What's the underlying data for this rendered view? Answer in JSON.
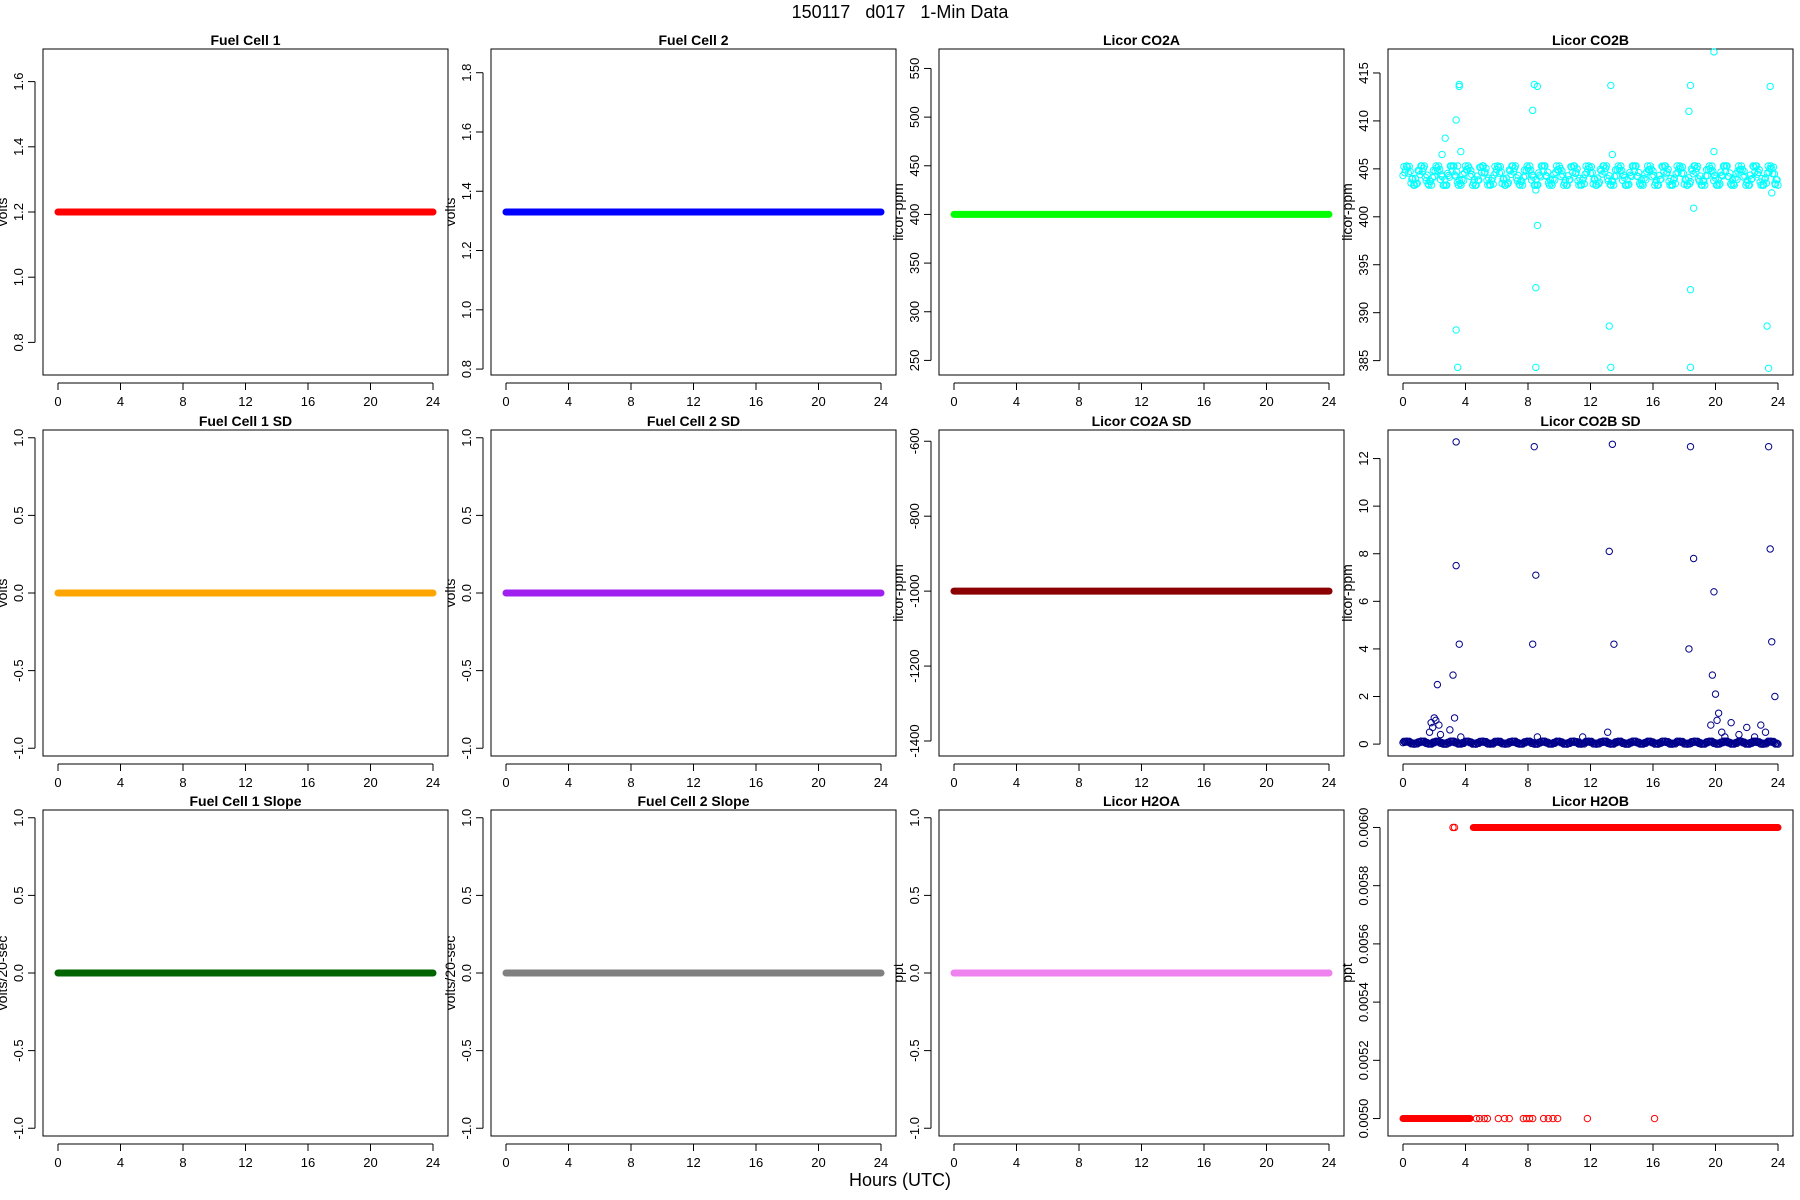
{
  "figure": {
    "title": "150117   d017   1-Min Data",
    "xlabel": "Hours (UTC)"
  },
  "chart_data": [
    {
      "type": "scatter",
      "title": "Fuel Cell 1",
      "ylabel": "volts",
      "color": "#ff0000",
      "xlim": [
        0,
        24
      ],
      "ylim": [
        0.7,
        1.7
      ],
      "x_ticks": [
        0,
        4,
        8,
        12,
        16,
        20,
        24
      ],
      "y_ticks": [
        0.8,
        1.0,
        1.2,
        1.4,
        1.6
      ],
      "y_tick_labels": [
        "0.8",
        "1.0",
        "1.2",
        "1.4",
        "1.6"
      ],
      "series": [
        {
          "kind": "constant",
          "y": 1.2,
          "x_range": [
            0,
            24
          ]
        }
      ]
    },
    {
      "type": "scatter",
      "title": "Fuel Cell 2",
      "ylabel": "volts",
      "color": "#0000ff",
      "xlim": [
        0,
        24
      ],
      "ylim": [
        0.78,
        1.88
      ],
      "x_ticks": [
        0,
        4,
        8,
        12,
        16,
        20,
        24
      ],
      "y_ticks": [
        0.8,
        1.0,
        1.2,
        1.4,
        1.6,
        1.8
      ],
      "y_tick_labels": [
        "0.8",
        "1.0",
        "1.2",
        "1.4",
        "1.6",
        "1.8"
      ],
      "series": [
        {
          "kind": "constant",
          "y": 1.33,
          "x_range": [
            0,
            24
          ]
        }
      ]
    },
    {
      "type": "scatter",
      "title": "Licor CO2A",
      "ylabel": "licor-ppm",
      "color": "#00ff00",
      "xlim": [
        0,
        24
      ],
      "ylim": [
        235,
        570
      ],
      "x_ticks": [
        0,
        4,
        8,
        12,
        16,
        20,
        24
      ],
      "y_ticks": [
        250,
        300,
        350,
        400,
        450,
        500,
        550
      ],
      "y_tick_labels": [
        "250",
        "300",
        "350",
        "400",
        "450",
        "500",
        "550"
      ],
      "series": [
        {
          "kind": "constant",
          "y": 400,
          "x_range": [
            0,
            24
          ]
        }
      ]
    },
    {
      "type": "scatter",
      "title": "Licor CO2B",
      "ylabel": "licor-ppm",
      "color": "#00ffff",
      "xlim": [
        0,
        24
      ],
      "ylim": [
        383.5,
        417.5
      ],
      "x_ticks": [
        0,
        4,
        8,
        12,
        16,
        20,
        24
      ],
      "y_ticks": [
        385,
        390,
        395,
        400,
        405,
        410,
        415
      ],
      "y_tick_labels": [
        "385",
        "390",
        "395",
        "400",
        "405",
        "410",
        "415"
      ],
      "series": [
        {
          "kind": "band",
          "x_range": [
            0,
            24
          ],
          "y_min": 403.3,
          "y_max": 405.3
        },
        {
          "kind": "points",
          "points": [
            [
              2.5,
              406.5
            ],
            [
              2.7,
              408.2
            ],
            [
              3.4,
              410.1
            ],
            [
              3.5,
              405.3
            ],
            [
              3.6,
              413.8
            ],
            [
              3.7,
              406.8
            ],
            [
              3.4,
              388.2
            ],
            [
              3.5,
              384.3
            ],
            [
              3.6,
              413.6
            ],
            [
              8.3,
              411.1
            ],
            [
              8.4,
              413.8
            ],
            [
              8.5,
              402.8
            ],
            [
              8.6,
              399.1
            ],
            [
              8.5,
              392.6
            ],
            [
              8.5,
              384.3
            ],
            [
              8.6,
              413.6
            ],
            [
              13.3,
              413.7
            ],
            [
              13.4,
              406.5
            ],
            [
              13.2,
              388.6
            ],
            [
              13.3,
              384.3
            ],
            [
              18.3,
              411
            ],
            [
              18.4,
              413.7
            ],
            [
              18.6,
              400.9
            ],
            [
              18.4,
              392.4
            ],
            [
              18.4,
              384.3
            ],
            [
              19.9,
              417.2
            ],
            [
              19.9,
              406.8
            ],
            [
              23.3,
              388.6
            ],
            [
              23.4,
              384.2
            ],
            [
              23.5,
              413.6
            ],
            [
              23.6,
              402.5
            ],
            [
              23.8,
              403.5
            ]
          ]
        }
      ]
    },
    {
      "type": "scatter",
      "title": "Fuel Cell 1 SD",
      "ylabel": "volts",
      "color": "#ffa500",
      "xlim": [
        0,
        24
      ],
      "ylim": [
        -1.05,
        1.05
      ],
      "x_ticks": [
        0,
        4,
        8,
        12,
        16,
        20,
        24
      ],
      "y_ticks": [
        -1.0,
        -0.5,
        0.0,
        0.5,
        1.0
      ],
      "y_tick_labels": [
        "-1.0",
        "-0.5",
        "0.0",
        "0.5",
        "1.0"
      ],
      "series": [
        {
          "kind": "constant",
          "y": 0,
          "x_range": [
            0,
            24
          ]
        }
      ]
    },
    {
      "type": "scatter",
      "title": "Fuel Cell 2 SD",
      "ylabel": "volts",
      "color": "#a020f0",
      "xlim": [
        0,
        24
      ],
      "ylim": [
        -1.05,
        1.05
      ],
      "x_ticks": [
        0,
        4,
        8,
        12,
        16,
        20,
        24
      ],
      "y_ticks": [
        -1.0,
        -0.5,
        0.0,
        0.5,
        1.0
      ],
      "y_tick_labels": [
        "-1.0",
        "-0.5",
        "0.0",
        "0.5",
        "1.0"
      ],
      "series": [
        {
          "kind": "constant",
          "y": 0,
          "x_range": [
            0,
            24
          ]
        }
      ]
    },
    {
      "type": "scatter",
      "title": "Licor CO2A SD",
      "ylabel": "licor-ppm",
      "color": "#8b0000",
      "xlim": [
        0,
        24
      ],
      "ylim": [
        -1440,
        -570
      ],
      "x_ticks": [
        0,
        4,
        8,
        12,
        16,
        20,
        24
      ],
      "y_ticks": [
        -1400,
        -1200,
        -1000,
        -800,
        -600
      ],
      "y_tick_labels": [
        "-1400",
        "-1200",
        "-1000",
        "-800",
        "-600"
      ],
      "series": [
        {
          "kind": "constant",
          "y": -1000,
          "x_range": [
            0,
            24
          ]
        }
      ]
    },
    {
      "type": "scatter",
      "title": "Licor CO2B SD",
      "ylabel": "licor-ppm",
      "color": "#00008b",
      "xlim": [
        0,
        24
      ],
      "ylim": [
        -0.5,
        13.2
      ],
      "x_ticks": [
        0,
        4,
        8,
        12,
        16,
        20,
        24
      ],
      "y_ticks": [
        0,
        2,
        4,
        6,
        8,
        10,
        12
      ],
      "y_tick_labels": [
        "0",
        "2",
        "4",
        "6",
        "8",
        "10",
        "12"
      ],
      "series": [
        {
          "kind": "band",
          "x_range": [
            0,
            24
          ],
          "y_min": 0,
          "y_max": 0.12
        },
        {
          "kind": "points",
          "points": [
            [
              1.7,
              0.5
            ],
            [
              1.8,
              0.9
            ],
            [
              1.9,
              0.7
            ],
            [
              2,
              1.1
            ],
            [
              2.1,
              1
            ],
            [
              2.2,
              2.5
            ],
            [
              2.3,
              0.8
            ],
            [
              2.4,
              0.4
            ],
            [
              3,
              0.6
            ],
            [
              3.2,
              2.9
            ],
            [
              3.3,
              1.1
            ],
            [
              3.4,
              12.7
            ],
            [
              3.4,
              7.5
            ],
            [
              3.6,
              4.2
            ],
            [
              3.7,
              0.3
            ],
            [
              8.3,
              4.2
            ],
            [
              8.4,
              12.5
            ],
            [
              8.5,
              7.1
            ],
            [
              8.6,
              0.3
            ],
            [
              11.5,
              0.3
            ],
            [
              13.2,
              8.1
            ],
            [
              13.4,
              12.6
            ],
            [
              13.5,
              4.2
            ],
            [
              13.1,
              0.5
            ],
            [
              18.3,
              4
            ],
            [
              18.4,
              12.5
            ],
            [
              18.6,
              7.8
            ],
            [
              19.8,
              2.9
            ],
            [
              19.9,
              6.4
            ],
            [
              20,
              2.1
            ],
            [
              19.7,
              0.8
            ],
            [
              20.1,
              1
            ],
            [
              20.2,
              1.3
            ],
            [
              20.4,
              0.5
            ],
            [
              20.6,
              0.3
            ],
            [
              21,
              0.9
            ],
            [
              21.5,
              0.4
            ],
            [
              22,
              0.7
            ],
            [
              22.5,
              0.3
            ],
            [
              22.9,
              0.8
            ],
            [
              23.2,
              0.5
            ],
            [
              23.4,
              12.5
            ],
            [
              23.5,
              8.2
            ],
            [
              23.6,
              4.3
            ],
            [
              23.8,
              2
            ]
          ]
        }
      ]
    },
    {
      "type": "scatter",
      "title": "Fuel Cell 1 Slope",
      "ylabel": "volts/20-sec",
      "color": "#006400",
      "xlim": [
        0,
        24
      ],
      "ylim": [
        -1.05,
        1.05
      ],
      "x_ticks": [
        0,
        4,
        8,
        12,
        16,
        20,
        24
      ],
      "y_ticks": [
        -1.0,
        -0.5,
        0.0,
        0.5,
        1.0
      ],
      "y_tick_labels": [
        "-1.0",
        "-0.5",
        "0.0",
        "0.5",
        "1.0"
      ],
      "series": [
        {
          "kind": "constant",
          "y": 0,
          "x_range": [
            0,
            24
          ]
        }
      ]
    },
    {
      "type": "scatter",
      "title": "Fuel Cell 2 Slope",
      "ylabel": "volts/20-sec",
      "color": "#808080",
      "xlim": [
        0,
        24
      ],
      "ylim": [
        -1.05,
        1.05
      ],
      "x_ticks": [
        0,
        4,
        8,
        12,
        16,
        20,
        24
      ],
      "y_ticks": [
        -1.0,
        -0.5,
        0.0,
        0.5,
        1.0
      ],
      "y_tick_labels": [
        "-1.0",
        "-0.5",
        "0.0",
        "0.5",
        "1.0"
      ],
      "series": [
        {
          "kind": "constant",
          "y": 0,
          "x_range": [
            0,
            24
          ]
        }
      ]
    },
    {
      "type": "scatter",
      "title": "Licor H2OA",
      "ylabel": "ppt",
      "color": "#ee82ee",
      "xlim": [
        0,
        24
      ],
      "ylim": [
        -1.05,
        1.05
      ],
      "x_ticks": [
        0,
        4,
        8,
        12,
        16,
        20,
        24
      ],
      "y_ticks": [
        -1.0,
        -0.5,
        0.0,
        0.5,
        1.0
      ],
      "y_tick_labels": [
        "-1.0",
        "-0.5",
        "0.0",
        "0.5",
        "1.0"
      ],
      "series": [
        {
          "kind": "constant",
          "y": 0,
          "x_range": [
            0,
            24
          ]
        }
      ]
    },
    {
      "type": "scatter",
      "title": "Licor H2OB",
      "ylabel": "ppt",
      "color": "#ff0000",
      "xlim": [
        0,
        24
      ],
      "ylim": [
        0.00494,
        0.00606
      ],
      "x_ticks": [
        0,
        4,
        8,
        12,
        16,
        20,
        24
      ],
      "y_ticks": [
        0.005,
        0.0052,
        0.0054,
        0.0056,
        0.0058,
        0.006
      ],
      "y_tick_labels": [
        "0.0050",
        "0.0052",
        "0.0054",
        "0.0056",
        "0.0058",
        "0.0060"
      ],
      "series": [
        {
          "kind": "constant",
          "y": 0.006,
          "x_range": [
            4.5,
            24
          ]
        },
        {
          "kind": "constant",
          "y": 0.005,
          "x_range": [
            0,
            4.3
          ]
        },
        {
          "kind": "points",
          "points": [
            [
              3.2,
              0.006
            ],
            [
              3.3,
              0.006
            ],
            [
              4.7,
              0.005
            ],
            [
              4.9,
              0.005
            ],
            [
              5.2,
              0.005
            ],
            [
              5.4,
              0.005
            ],
            [
              6.1,
              0.005
            ],
            [
              6.5,
              0.005
            ],
            [
              6.8,
              0.005
            ],
            [
              7.7,
              0.005
            ],
            [
              7.9,
              0.005
            ],
            [
              8.1,
              0.005
            ],
            [
              8.3,
              0.005
            ],
            [
              9,
              0.005
            ],
            [
              9.3,
              0.005
            ],
            [
              9.6,
              0.005
            ],
            [
              9.9,
              0.005
            ],
            [
              11.8,
              0.005
            ],
            [
              16.1,
              0.005
            ]
          ]
        }
      ]
    }
  ]
}
